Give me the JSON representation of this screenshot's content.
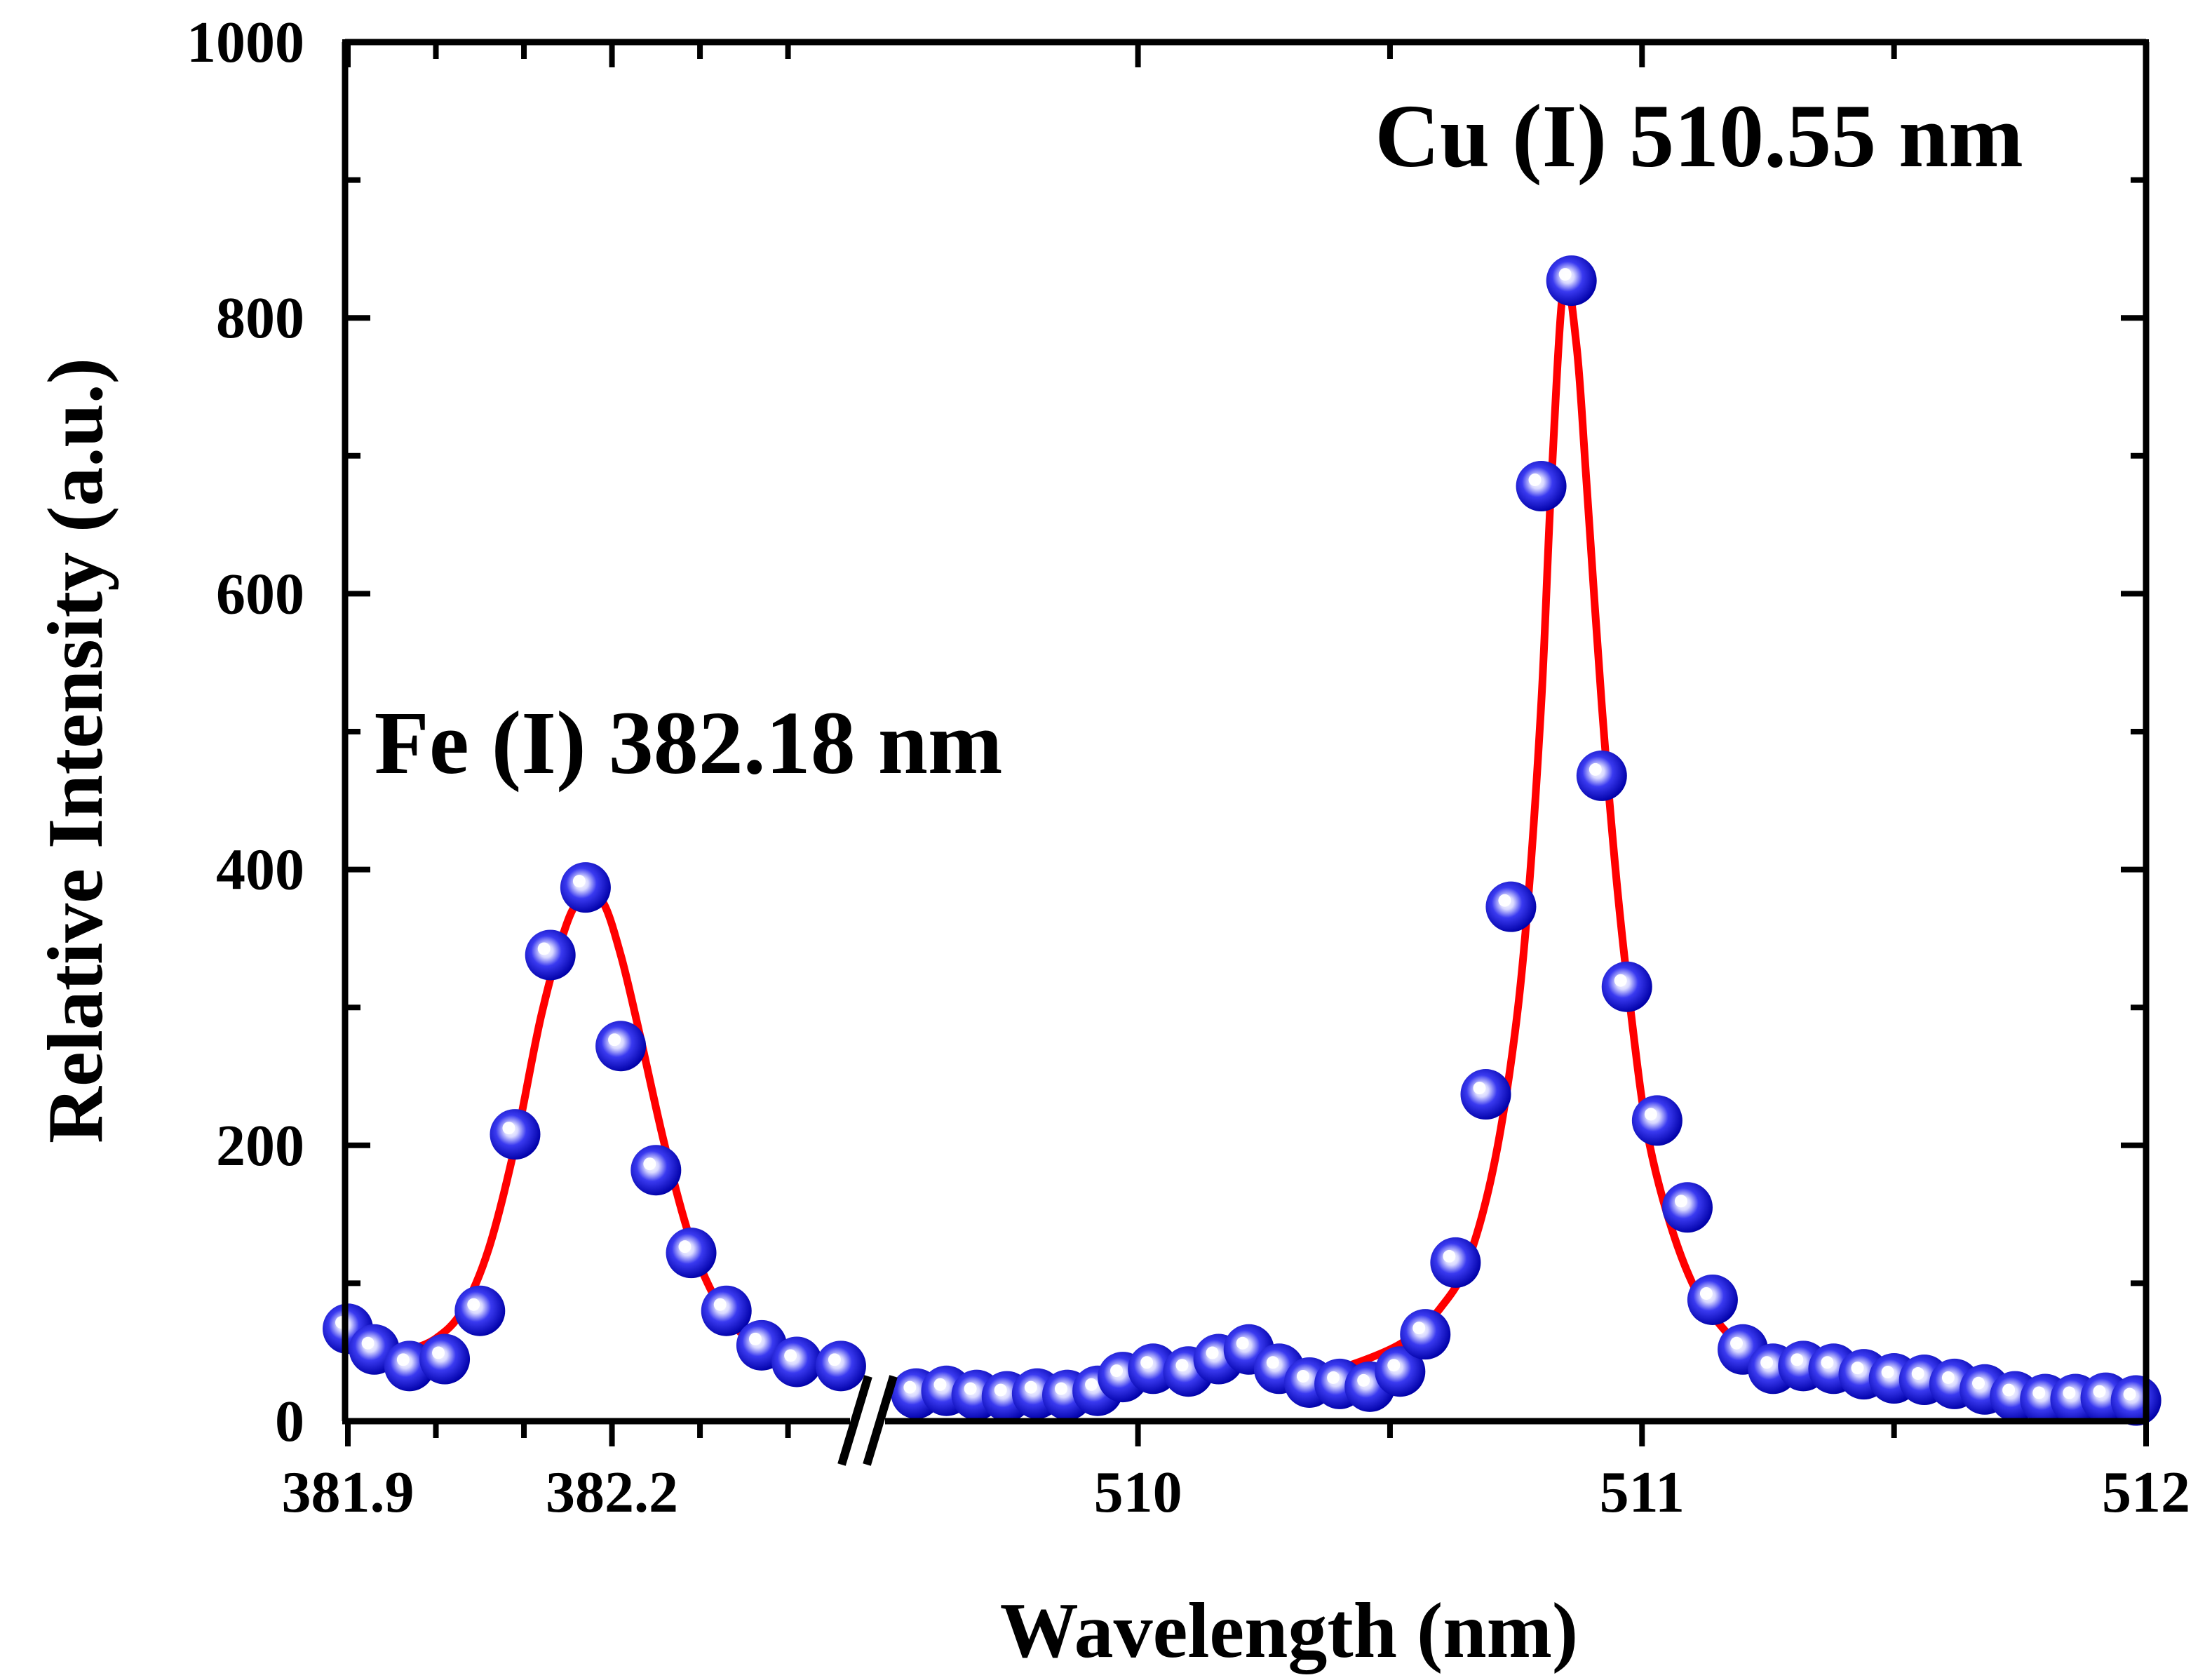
{
  "chart_data": {
    "type": "scatter",
    "xlabel": "Wavelength (nm)",
    "ylabel": "Relative Intensity (a.u.)",
    "ylim": [
      0,
      1000
    ],
    "y_ticks": [
      "0",
      "200",
      "400",
      "600",
      "800",
      "1000"
    ],
    "x_broken_axis": true,
    "x_segments": [
      {
        "xlim": [
          381.9,
          382.48
        ],
        "ticks": [
          381.9,
          382.2
        ],
        "tick_labels": [
          "381.9",
          "382.2"
        ]
      },
      {
        "xlim": [
          509.54,
          512.0
        ],
        "ticks": [
          510,
          511,
          512
        ],
        "tick_labels": [
          "510",
          "511",
          "512"
        ]
      }
    ],
    "annotations": [
      {
        "text": "Fe (I) 382.18 nm",
        "x": 381.93,
        "y": 470
      },
      {
        "text": "Cu (I) 510.55 nm",
        "x": 510.47,
        "y": 910
      }
    ],
    "series": [
      {
        "kind": "points",
        "segment": 0,
        "x": [
          381.9,
          381.93,
          381.97,
          382.01,
          382.05,
          382.09,
          382.13,
          382.17,
          382.21,
          382.25,
          382.29,
          382.33,
          382.37,
          382.41,
          382.46
        ],
        "y": [
          67,
          52,
          40,
          45,
          80,
          208,
          338,
          387,
          272,
          182,
          122,
          80,
          55,
          43,
          40
        ]
      },
      {
        "kind": "points",
        "segment": 1,
        "x": [
          509.56,
          509.62,
          509.68,
          509.74,
          509.8,
          509.86,
          509.92,
          509.97,
          510.03,
          510.1,
          510.16,
          510.22,
          510.28,
          510.34,
          510.4,
          510.46,
          510.52,
          510.57,
          510.63,
          510.69,
          510.74,
          510.8,
          510.86,
          510.92,
          510.97,
          511.03,
          511.09,
          511.14,
          511.2,
          511.26,
          511.32,
          511.38,
          511.44,
          511.5,
          511.56,
          511.62,
          511.68,
          511.74,
          511.8,
          511.86,
          511.92,
          511.98
        ],
        "y": [
          20,
          22,
          19,
          18,
          20,
          19,
          22,
          32,
          38,
          36,
          45,
          52,
          38,
          28,
          27,
          25,
          36,
          63,
          115,
          237,
          373,
          678,
          827,
          468,
          315,
          218,
          155,
          88,
          52,
          38,
          40,
          38,
          34,
          31,
          30,
          27,
          23,
          18,
          16,
          16,
          17,
          15
        ]
      },
      {
        "kind": "fit",
        "segment": 0,
        "color": "#ff0000",
        "x": [
          381.91,
          381.94,
          381.97,
          382.0,
          382.03,
          382.06,
          382.09,
          382.12,
          382.15,
          382.17,
          382.19,
          382.21,
          382.23,
          382.26,
          382.29,
          382.32,
          382.35,
          382.38,
          382.41,
          382.44
        ],
        "y": [
          46,
          48,
          52,
          60,
          80,
          125,
          200,
          295,
          363,
          380,
          376,
          338,
          285,
          200,
          130,
          86,
          62,
          51,
          47,
          45
        ]
      },
      {
        "kind": "fit",
        "segment": 1,
        "color": "#ff0000",
        "x": [
          510.3,
          510.4,
          510.5,
          510.55,
          510.6,
          510.65,
          510.7,
          510.74,
          510.77,
          510.8,
          510.82,
          510.845,
          510.87,
          510.89,
          510.92,
          510.95,
          510.98,
          511.01,
          511.05,
          511.1,
          511.15,
          511.2,
          511.3,
          511.4,
          511.55
        ],
        "y": [
          28,
          38,
          52,
          64,
          82,
          112,
          175,
          260,
          360,
          520,
          680,
          825,
          780,
          680,
          520,
          390,
          290,
          210,
          150,
          100,
          72,
          55,
          38,
          28,
          20
        ]
      }
    ],
    "colors": {
      "marker_fill": "#2020e0",
      "marker_highlight": "#ffffff",
      "fit_line": "#ff0000",
      "axis": "#000000"
    }
  }
}
